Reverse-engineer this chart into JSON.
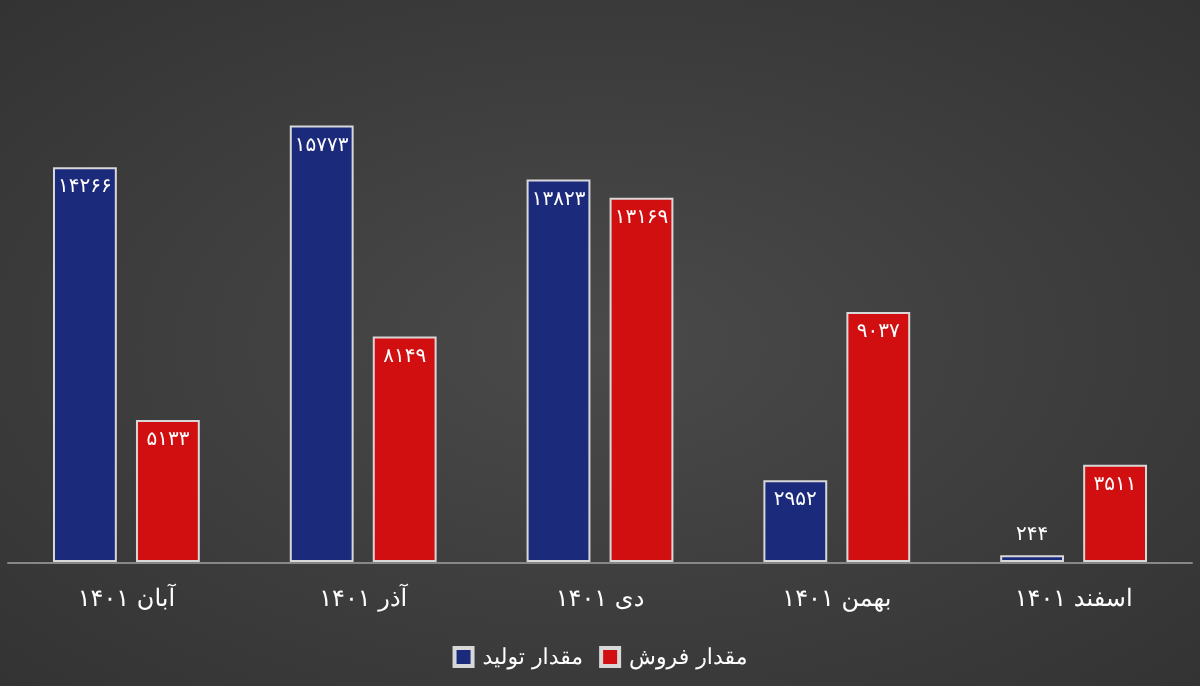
{
  "chart_data": {
    "type": "bar",
    "categories": [
      "آبان ۱۴۰۱",
      "آذر ۱۴۰۱",
      "دی ۱۴۰۱",
      "بهمن ۱۴۰۱",
      "اسفند ۱۴۰۱"
    ],
    "series": [
      {
        "name": "مقدار تولید",
        "color": "#1c2a7c",
        "values": [
          14266,
          15773,
          13823,
          2952,
          244
        ],
        "value_labels": [
          "۱۴۲۶۶",
          "۱۵۷۷۳",
          "۱۳۸۲۳",
          "۲۹۵۲",
          "۲۴۴"
        ]
      },
      {
        "name": "مقدار فروش",
        "color": "#d20f10",
        "values": [
          5133,
          8149,
          13169,
          9037,
          3511
        ],
        "value_labels": [
          "۵۱۳۳",
          "۸۱۴۹",
          "۱۳۱۶۹",
          "۹۰۳۷",
          "۳۵۱۱"
        ]
      }
    ],
    "legend": "bottom"
  }
}
